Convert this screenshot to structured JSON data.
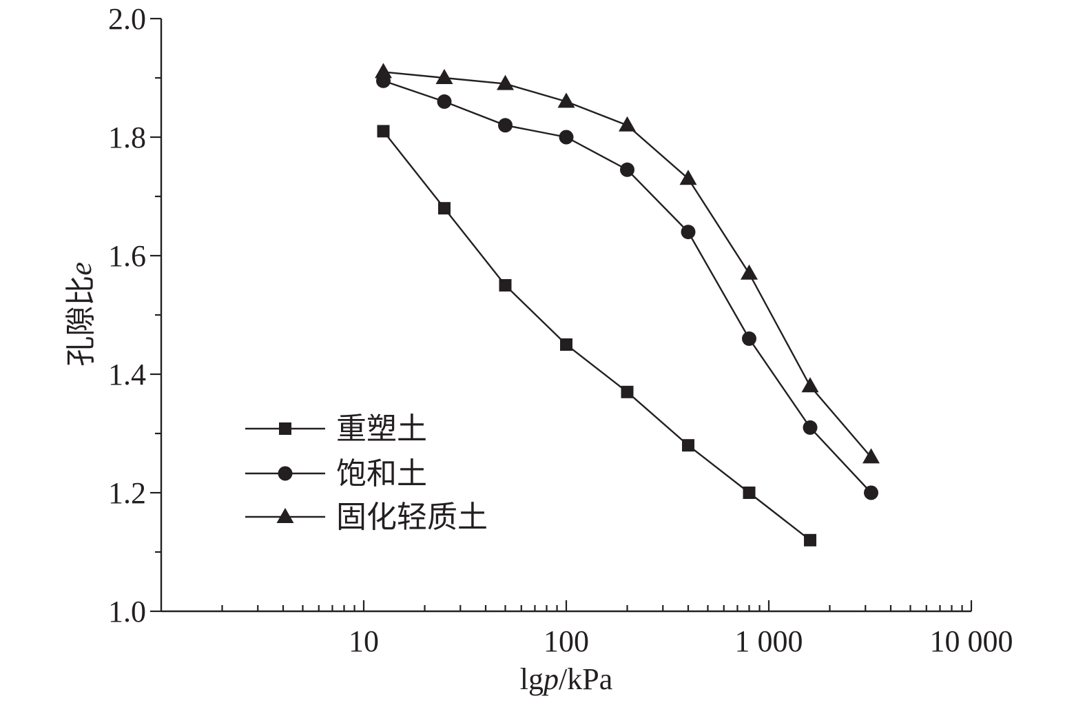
{
  "chart_data": {
    "type": "line",
    "xlabel_pre": "lg",
    "xlabel_var": "p",
    "xlabel_post": "/kPa",
    "ylabel_pre": "孔隙比",
    "ylabel_var": "e",
    "x_scale": "log",
    "xlim": [
      1,
      10000
    ],
    "ylim": [
      1.0,
      2.0
    ],
    "x_ticks": [
      10,
      100,
      1000,
      10000
    ],
    "x_tick_labels": [
      "10",
      "100",
      "1 000",
      "10 000"
    ],
    "y_ticks": [
      1.0,
      1.2,
      1.4,
      1.6,
      1.8,
      2.0
    ],
    "y_tick_labels": [
      "1.0",
      "1.2",
      "1.4",
      "1.6",
      "1.8",
      "2.0"
    ],
    "grid": false,
    "legend_position": "bottom-left",
    "series": [
      {
        "name": "重塑土",
        "marker": "square",
        "x": [
          12.5,
          25,
          50,
          100,
          200,
          400,
          800,
          1600
        ],
        "y": [
          1.81,
          1.68,
          1.55,
          1.45,
          1.37,
          1.28,
          1.2,
          1.12
        ]
      },
      {
        "name": "饱和土",
        "marker": "circle",
        "x": [
          12.5,
          25,
          50,
          100,
          200,
          400,
          800,
          1600,
          3200
        ],
        "y": [
          1.895,
          1.86,
          1.82,
          1.8,
          1.745,
          1.64,
          1.46,
          1.31,
          1.2
        ]
      },
      {
        "name": "固化轻质土",
        "marker": "triangle",
        "x": [
          12.5,
          25,
          50,
          100,
          200,
          400,
          800,
          1600,
          3200
        ],
        "y": [
          1.91,
          1.9,
          1.89,
          1.86,
          1.82,
          1.73,
          1.57,
          1.38,
          1.26
        ]
      }
    ]
  }
}
